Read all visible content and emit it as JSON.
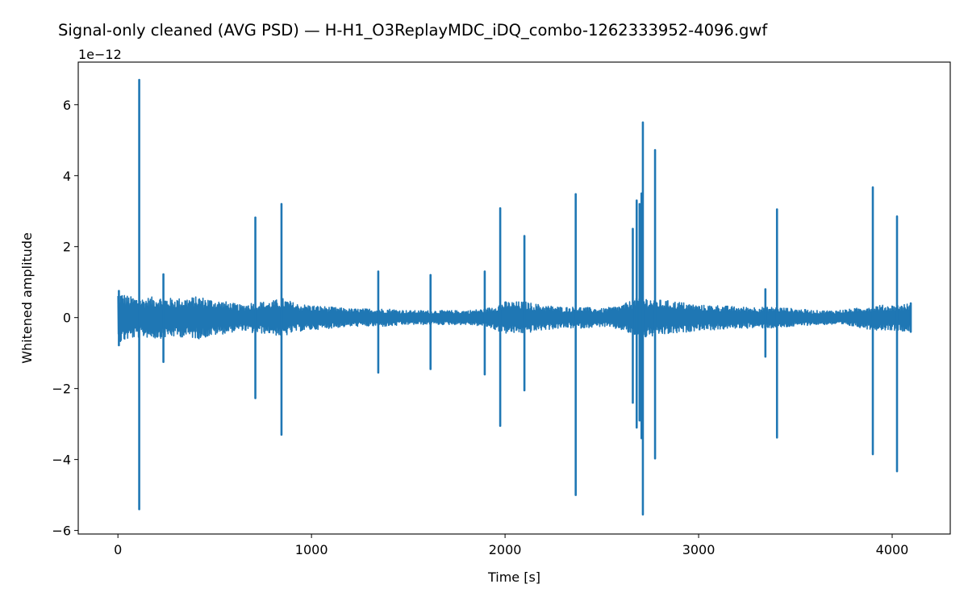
{
  "chart_data": {
    "type": "line",
    "title": "Signal-only cleaned (AVG PSD) — H-H1_O3ReplayMDC_iDQ_combo-1262333952-4096.gwf",
    "xlabel": "Time [s]",
    "ylabel": "Whitened amplitude",
    "y_offset_label": "1e−12",
    "xlim": [
      -205,
      4300
    ],
    "ylim": [
      -6.1,
      7.2
    ],
    "xticks": [
      0,
      1000,
      2000,
      3000,
      4000
    ],
    "xtick_labels": [
      "0",
      "1000",
      "2000",
      "3000",
      "4000"
    ],
    "yticks": [
      -6,
      -4,
      -2,
      0,
      2,
      4,
      6
    ],
    "ytick_labels": [
      "−6",
      "−4",
      "−2",
      "0",
      "2",
      "4",
      "6"
    ],
    "grid": false,
    "series": [
      {
        "color": "#1f77b4",
        "x_range": [
          0,
          4096
        ],
        "noise_envelope": [
          [
            0,
            0.75
          ],
          [
            60,
            0.6
          ],
          [
            130,
            0.55
          ],
          [
            200,
            0.6
          ],
          [
            260,
            0.55
          ],
          [
            340,
            0.55
          ],
          [
            420,
            0.6
          ],
          [
            500,
            0.5
          ],
          [
            560,
            0.45
          ],
          [
            640,
            0.35
          ],
          [
            700,
            0.45
          ],
          [
            780,
            0.45
          ],
          [
            850,
            0.55
          ],
          [
            920,
            0.4
          ],
          [
            1000,
            0.35
          ],
          [
            1100,
            0.3
          ],
          [
            1200,
            0.25
          ],
          [
            1300,
            0.25
          ],
          [
            1400,
            0.25
          ],
          [
            1500,
            0.2
          ],
          [
            1600,
            0.2
          ],
          [
            1700,
            0.2
          ],
          [
            1800,
            0.2
          ],
          [
            1900,
            0.25
          ],
          [
            2000,
            0.45
          ],
          [
            2100,
            0.45
          ],
          [
            2200,
            0.35
          ],
          [
            2300,
            0.3
          ],
          [
            2400,
            0.3
          ],
          [
            2500,
            0.25
          ],
          [
            2600,
            0.35
          ],
          [
            2700,
            0.6
          ],
          [
            2800,
            0.5
          ],
          [
            2900,
            0.45
          ],
          [
            3000,
            0.35
          ],
          [
            3100,
            0.35
          ],
          [
            3200,
            0.3
          ],
          [
            3300,
            0.3
          ],
          [
            3400,
            0.3
          ],
          [
            3500,
            0.25
          ],
          [
            3600,
            0.2
          ],
          [
            3700,
            0.2
          ],
          [
            3800,
            0.25
          ],
          [
            3900,
            0.35
          ],
          [
            4000,
            0.35
          ],
          [
            4096,
            0.4
          ]
        ],
        "spikes": [
          {
            "t": 5,
            "max": 0.75,
            "min": -0.78
          },
          {
            "t": 110,
            "max": 6.7,
            "min": -5.4
          },
          {
            "t": 235,
            "max": 1.22,
            "min": -1.25
          },
          {
            "t": 710,
            "max": 2.82,
            "min": -2.27
          },
          {
            "t": 845,
            "max": 3.2,
            "min": -3.3
          },
          {
            "t": 1345,
            "max": 1.3,
            "min": -1.55
          },
          {
            "t": 1615,
            "max": 1.2,
            "min": -1.45
          },
          {
            "t": 1895,
            "max": 1.3,
            "min": -1.6
          },
          {
            "t": 1975,
            "max": 3.08,
            "min": -3.05
          },
          {
            "t": 2100,
            "max": 2.3,
            "min": -2.05
          },
          {
            "t": 2365,
            "max": 3.48,
            "min": -5.0
          },
          {
            "t": 2660,
            "max": 2.5,
            "min": -2.4
          },
          {
            "t": 2680,
            "max": 3.3,
            "min": -3.1
          },
          {
            "t": 2695,
            "max": 3.2,
            "min": -2.9
          },
          {
            "t": 2705,
            "max": 3.5,
            "min": -3.4
          },
          {
            "t": 2712,
            "max": 5.5,
            "min": -5.55
          },
          {
            "t": 2775,
            "max": 4.72,
            "min": -3.97
          },
          {
            "t": 3345,
            "max": 0.8,
            "min": -1.1
          },
          {
            "t": 3405,
            "max": 3.05,
            "min": -3.38
          },
          {
            "t": 3900,
            "max": 3.67,
            "min": -3.85
          },
          {
            "t": 4025,
            "max": 2.85,
            "min": -4.33
          },
          {
            "t": 4096,
            "max": 0.4,
            "min": -0.4
          }
        ]
      }
    ]
  }
}
